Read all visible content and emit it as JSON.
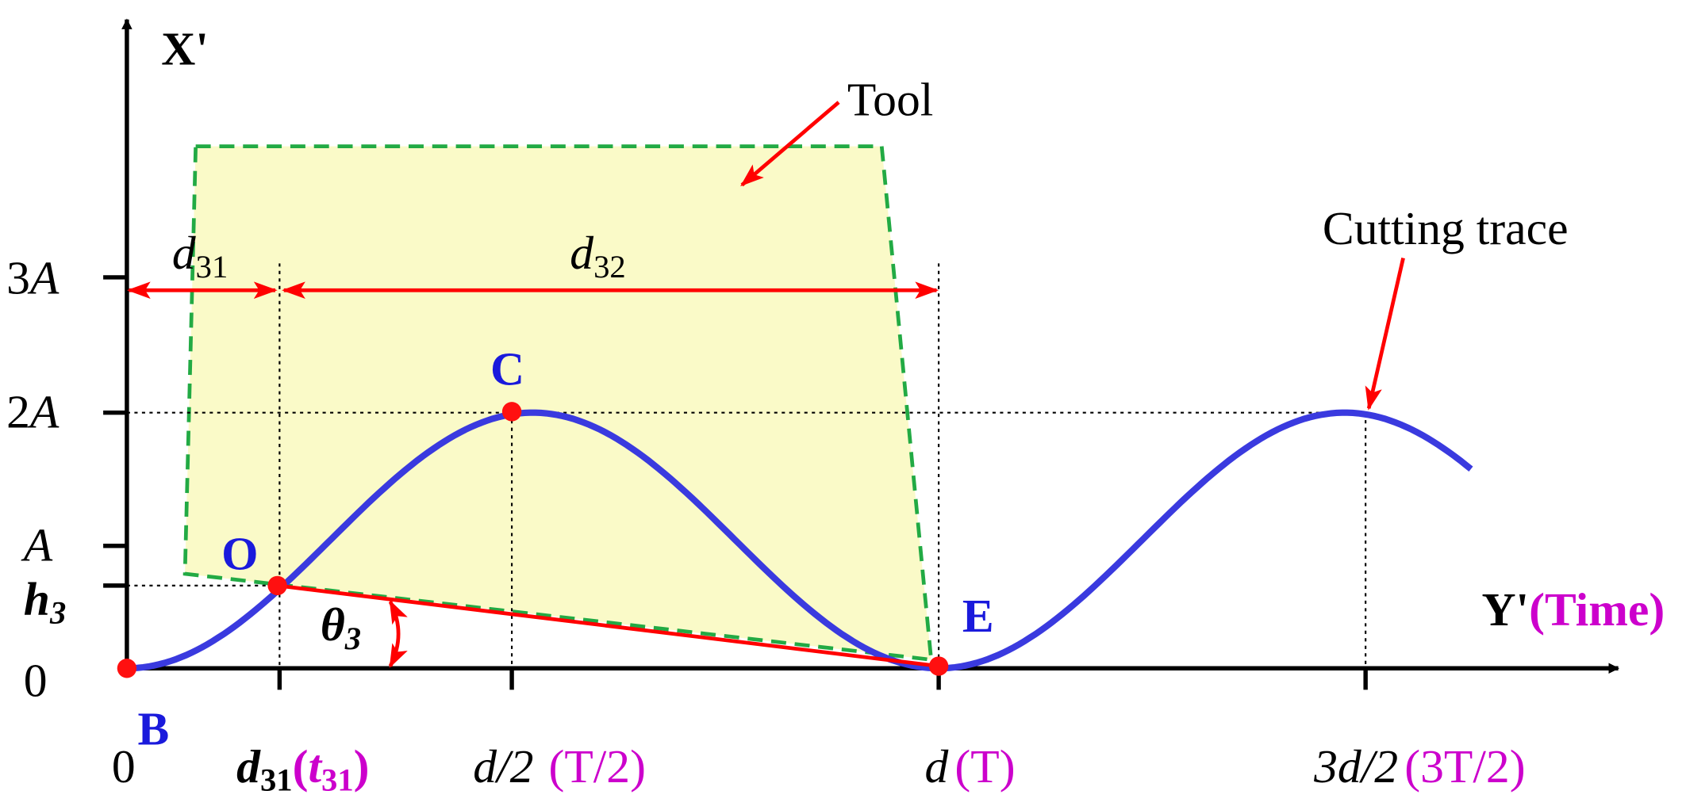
{
  "axes": {
    "y_title": "X'",
    "x_title": "Y'",
    "x_title_note": "(Time)"
  },
  "callouts": {
    "tool": "Tool",
    "cutting_trace": "Cutting trace"
  },
  "y_labels": [
    {
      "pre": "3",
      "sym": "A"
    },
    {
      "pre": "2",
      "sym": "A"
    },
    {
      "sym": "A"
    },
    {
      "sym": "h",
      "sub": "3"
    },
    {
      "pre": "0"
    }
  ],
  "dimensions": [
    {
      "sym": "d",
      "sub": "31"
    },
    {
      "sym": "d",
      "sub": "32"
    }
  ],
  "points": {
    "c": "C",
    "o": "O",
    "b": "B",
    "e": "E"
  },
  "angle": {
    "sym": "θ",
    "sub": "3"
  },
  "x_labels": [
    {
      "main": "0"
    },
    {
      "main": "d",
      "sub": "31",
      "open": "(",
      "note": "t",
      "note_sub": "31",
      "close": ")"
    },
    {
      "main": "d/2",
      "note": "(T/2)"
    },
    {
      "main": "d",
      "note": "(T)"
    },
    {
      "main": "3d/2",
      "note": "(3T/2)"
    }
  ]
}
